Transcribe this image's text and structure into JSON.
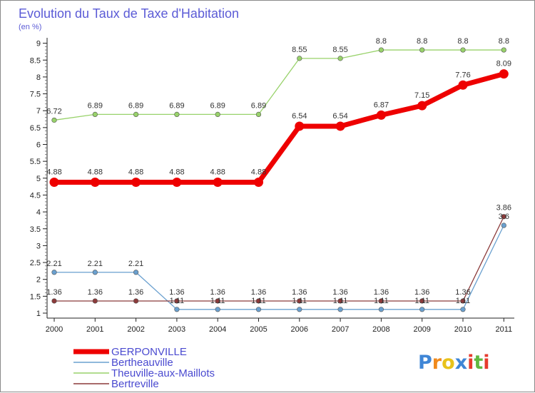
{
  "chart_data": {
    "type": "line",
    "title": "Evolution du Taux de Taxe d'Habitation",
    "subtitle": "(en %)",
    "x": [
      "2000",
      "2001",
      "2002",
      "2003",
      "2004",
      "2005",
      "2006",
      "2007",
      "2008",
      "2009",
      "2010",
      "2011"
    ],
    "ylim": [
      0.9,
      9
    ],
    "y_ticks": [
      "1",
      "1.5",
      "2",
      "2.5",
      "3",
      "3.5",
      "4",
      "4.5",
      "5",
      "5.5",
      "6",
      "6.5",
      "7",
      "7.5",
      "8",
      "8.5",
      "9"
    ],
    "grid": false,
    "legend_position": "bottom-left",
    "series": [
      {
        "name": "GERPONVILLE",
        "color": "#ee0000",
        "values": [
          4.88,
          4.88,
          4.88,
          4.88,
          4.88,
          4.88,
          6.54,
          6.54,
          6.87,
          7.15,
          7.76,
          8.09
        ],
        "labels": [
          "4.88",
          "4.88",
          "4.88",
          "4.88",
          "4.88",
          "4.88",
          "6.54",
          "6.54",
          "6.87",
          "7.15",
          "7.76",
          "8.09"
        ],
        "emphasis": "thick"
      },
      {
        "name": "Bertheauville",
        "color": "#6aa0cf",
        "values": [
          2.21,
          2.21,
          2.21,
          1.11,
          1.11,
          1.11,
          1.11,
          1.11,
          1.11,
          1.11,
          1.11,
          3.6
        ],
        "labels": [
          "2.21",
          "2.21",
          "2.21",
          "1.11",
          "1.11",
          "1.11",
          "1.11",
          "1.11",
          "1.11",
          "1.11",
          "1.11",
          "3.6"
        ]
      },
      {
        "name": "Theuville-aux-Maillots",
        "color": "#98d26a",
        "values": [
          6.72,
          6.89,
          6.89,
          6.89,
          6.89,
          6.89,
          8.55,
          8.55,
          8.8,
          8.8,
          8.8,
          8.8
        ],
        "labels": [
          "6.72",
          "6.89",
          "6.89",
          "6.89",
          "6.89",
          "6.89",
          "8.55",
          "8.55",
          "8.8",
          "8.8",
          "8.8",
          "8.8"
        ]
      },
      {
        "name": "Bertreville",
        "color": "#8b3a3a",
        "values": [
          1.36,
          1.36,
          1.36,
          1.36,
          1.36,
          1.36,
          1.36,
          1.36,
          1.36,
          1.36,
          1.36,
          3.86
        ],
        "labels": [
          "1.36",
          "1.36",
          "1.36",
          "1.36",
          "1.36",
          "1.36",
          "1.36",
          "1.36",
          "1.36",
          "1.36",
          "1.36",
          "3.86"
        ]
      }
    ]
  },
  "logo": {
    "letters": [
      "P",
      "r",
      "o",
      "x",
      "i",
      "t",
      "i"
    ],
    "colors": [
      "#3f86d6",
      "#f08a1c",
      "#e8c21a",
      "#3f86d6",
      "#e63b2e",
      "#60b840",
      "#e63b2e"
    ]
  }
}
